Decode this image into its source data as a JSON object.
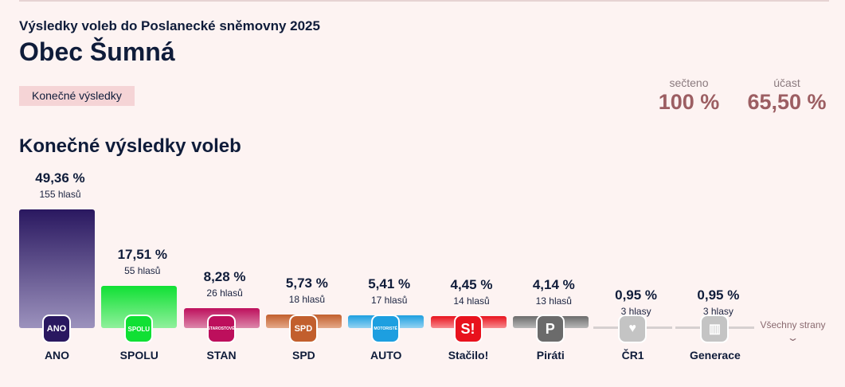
{
  "header": {
    "subtitle": "Výsledky voleb do Poslanecké sněmovny 2025",
    "title": "Obec Šumná",
    "badge": "Konečné výsledky",
    "counted_label": "sečteno",
    "counted_value": "100 %",
    "turnout_label": "účast",
    "turnout_value": "65,50 %"
  },
  "section_title": "Konečné výsledky voleb",
  "all_parties_label": "Všechny strany",
  "chart_data": {
    "type": "bar",
    "categories": [
      "ANO",
      "SPOLU",
      "STAN",
      "SPD",
      "AUTO",
      "Stačilo!",
      "Piráti",
      "ČR1",
      "Generace"
    ],
    "values": [
      49.36,
      17.51,
      8.28,
      5.73,
      5.41,
      4.45,
      4.14,
      0.95,
      0.95
    ],
    "value_labels": [
      "49,36 %",
      "17,51 %",
      "8,28 %",
      "5,73 %",
      "5,41 %",
      "4,45 %",
      "4,14 %",
      "0,95 %",
      "0,95 %"
    ],
    "votes": [
      155,
      55,
      26,
      18,
      17,
      14,
      13,
      3,
      3
    ],
    "vote_labels": [
      "155 hlasů",
      "55 hlasů",
      "26 hlasů",
      "18 hlasů",
      "17 hlasů",
      "14 hlasů",
      "13 hlasů",
      "3 hlasy",
      "3 hlasy"
    ],
    "logo_text": [
      "ANO",
      "SPOLU",
      "STAROSTOVÉ",
      "SPD",
      "MOTORISTÉ",
      "S!",
      "P",
      "♥",
      "▥"
    ],
    "colors": [
      [
        "#2a1860",
        "#9c92bd"
      ],
      [
        "#10e034",
        "#90f09c"
      ],
      [
        "#bd0f5c",
        "#dc86aa"
      ],
      [
        "#c25f2d",
        "#e4a888"
      ],
      [
        "#1d9fe0",
        "#92d2f2"
      ],
      [
        "#e8121d",
        "#f78a8e"
      ],
      [
        "#6b6b6b",
        "#b8b8b8"
      ],
      [
        "#c4c4c4",
        "#c4c4c4"
      ],
      [
        "#c4c4c4",
        "#c4c4c4"
      ]
    ],
    "ylim": [
      0,
      50
    ]
  }
}
